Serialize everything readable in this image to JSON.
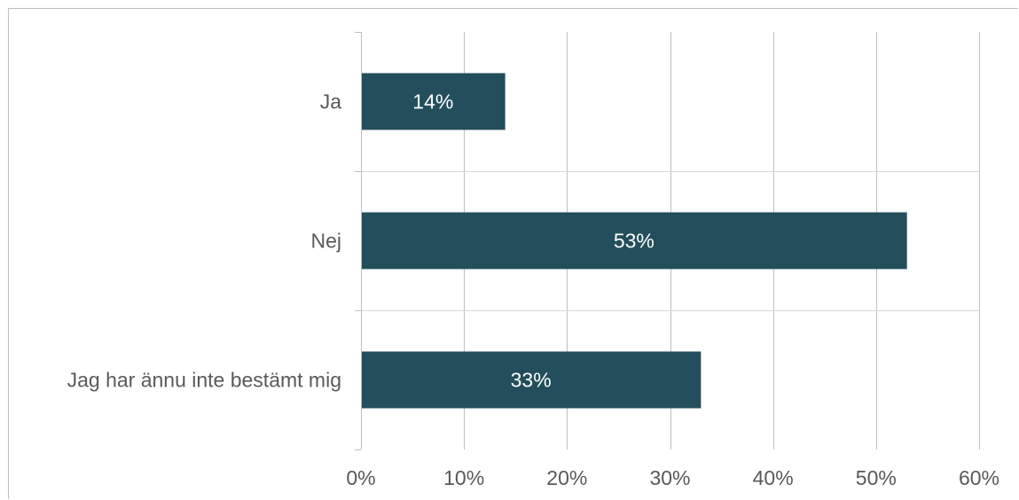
{
  "chart_data": {
    "type": "bar",
    "orientation": "horizontal",
    "categories": [
      "Ja",
      "Nej",
      "Jag har ännu inte bestämt mig"
    ],
    "values": [
      14,
      53,
      33
    ],
    "data_labels": [
      "14%",
      "53%",
      "33%"
    ],
    "xlim": [
      0,
      60
    ],
    "x_ticks": [
      0,
      10,
      20,
      30,
      40,
      50,
      60
    ],
    "x_tick_labels": [
      "0%",
      "10%",
      "20%",
      "30%",
      "40%",
      "50%",
      "60%"
    ],
    "grid": true,
    "legend": "none",
    "colors": {
      "bar": "#234e5b",
      "grid": "#bfbfbf",
      "text": "#595959",
      "label": "#ffffff"
    }
  }
}
